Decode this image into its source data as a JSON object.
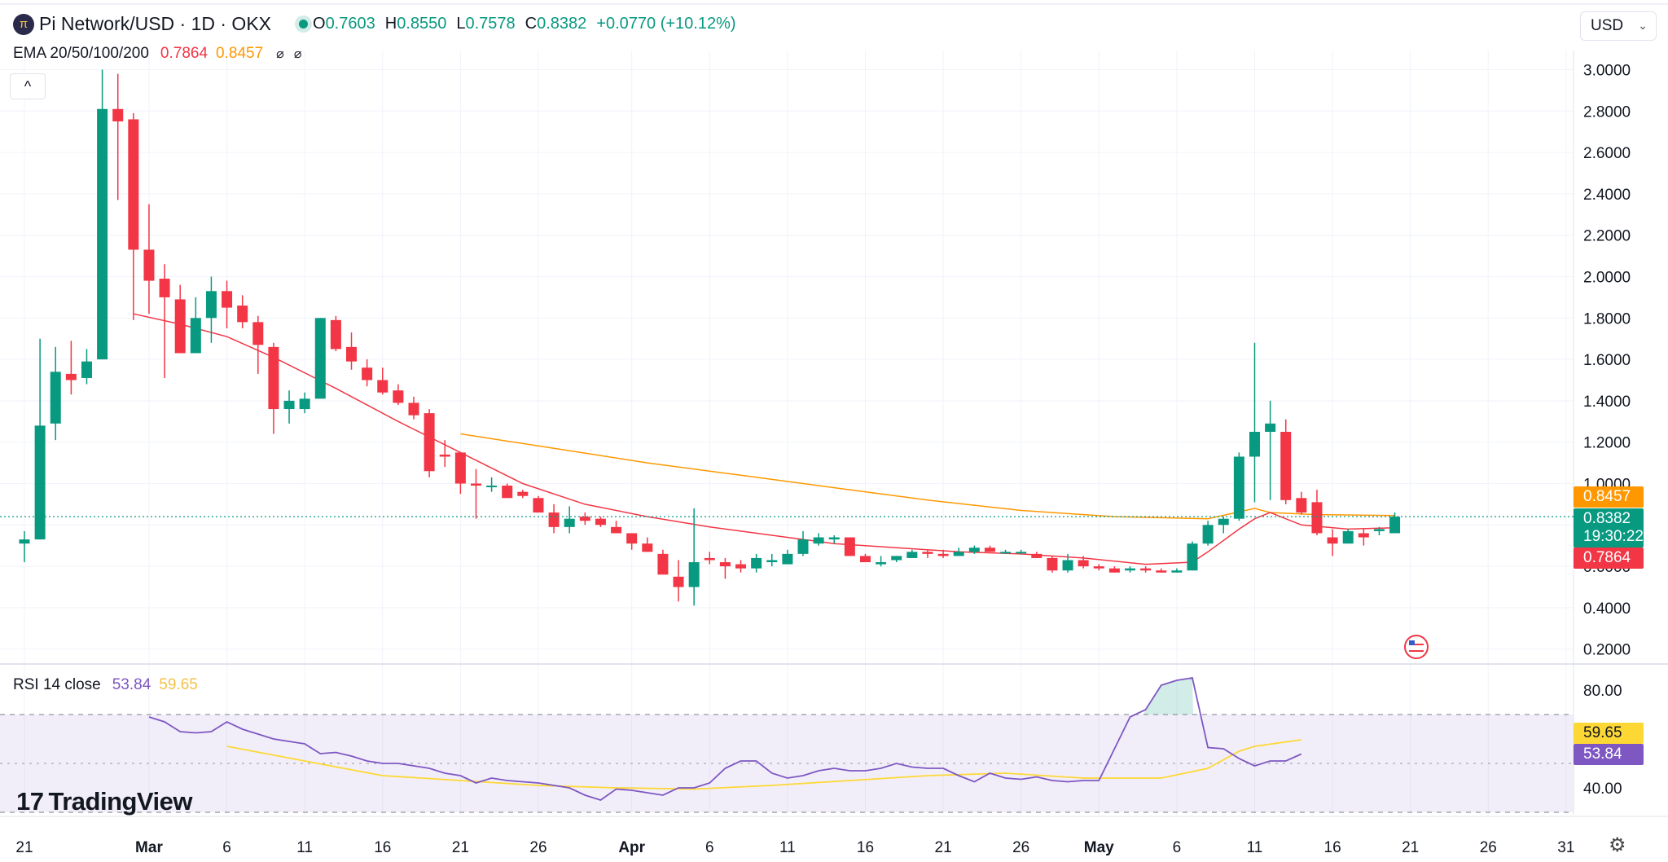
{
  "header": {
    "symbol_icon": "pi-coin-icon",
    "symbol": "Pi Network/USD · 1D · OKX",
    "o_label": "O",
    "o_value": "0.7603",
    "h_label": "H",
    "h_value": "0.8550",
    "l_label": "L",
    "l_value": "0.7578",
    "c_label": "C",
    "c_value": "0.8382",
    "change": "+0.0770 (+10.12%)"
  },
  "ema_legend": {
    "label": "EMA 20/50/100/200",
    "v1": "0.7864",
    "v2": "0.8457",
    "hidden_icon_1": "⌀",
    "hidden_icon_2": "⌀"
  },
  "collapse_icon": "^",
  "currency": {
    "value": "USD",
    "caret": "⌄"
  },
  "rsi_legend": {
    "label": "RSI 14 close",
    "rsi": "53.84",
    "ma": "59.65"
  },
  "price_tags": {
    "ema50": "0.8457",
    "last": "0.8382",
    "countdown": "19:30:22",
    "ema20": "0.7864"
  },
  "rsi_tags": {
    "ma": "59.65",
    "rsi": "53.84"
  },
  "logo": {
    "mark": "17",
    "text": "TradingView"
  },
  "settings_icon": "gear-icon",
  "colors": {
    "up": "#089981",
    "down": "#f23645",
    "ema20": "#f23645",
    "ema50": "#ff9800",
    "rsi": "#7e57c2",
    "rsi_ma": "#fdd835"
  },
  "chart_data": {
    "type": "candlestick",
    "title": "Pi Network/USD · 1D · OKX",
    "y_ticks": [
      "3.0000",
      "2.8000",
      "2.6000",
      "2.4000",
      "2.2000",
      "2.0000",
      "1.8000",
      "1.6000",
      "1.4000",
      "1.2000",
      "1.0000",
      "0.8000",
      "0.6000",
      "0.4000",
      "0.2000"
    ],
    "ylim": [
      0.13,
      3.03
    ],
    "x_ticks": [
      {
        "label": "21",
        "day": 0
      },
      {
        "label": "Mar",
        "day": 8
      },
      {
        "label": "6",
        "day": 13
      },
      {
        "label": "11",
        "day": 18
      },
      {
        "label": "16",
        "day": 23
      },
      {
        "label": "21",
        "day": 28
      },
      {
        "label": "26",
        "day": 33
      },
      {
        "label": "Apr",
        "day": 39
      },
      {
        "label": "6",
        "day": 44
      },
      {
        "label": "11",
        "day": 49
      },
      {
        "label": "16",
        "day": 54
      },
      {
        "label": "21",
        "day": 59
      },
      {
        "label": "26",
        "day": 64
      },
      {
        "label": "May",
        "day": 69
      },
      {
        "label": "6",
        "day": 74
      },
      {
        "label": "11",
        "day": 79
      },
      {
        "label": "16",
        "day": 84
      },
      {
        "label": "21",
        "day": 89
      },
      {
        "label": "26",
        "day": 94
      },
      {
        "label": "31",
        "day": 99
      }
    ],
    "candles_ohlc": [
      [
        0.71,
        0.77,
        0.62,
        0.73
      ],
      [
        0.73,
        1.7,
        0.73,
        1.28
      ],
      [
        1.29,
        1.66,
        1.21,
        1.54
      ],
      [
        1.53,
        1.69,
        1.43,
        1.5
      ],
      [
        1.51,
        1.65,
        1.48,
        1.59
      ],
      [
        1.6,
        3.0,
        1.6,
        2.81
      ],
      [
        2.81,
        2.98,
        2.37,
        2.75
      ],
      [
        2.76,
        2.79,
        1.79,
        2.13
      ],
      [
        2.13,
        2.35,
        1.82,
        1.98
      ],
      [
        1.99,
        2.06,
        1.51,
        1.9
      ],
      [
        1.89,
        1.96,
        1.63,
        1.63
      ],
      [
        1.63,
        1.9,
        1.63,
        1.8
      ],
      [
        1.8,
        2.0,
        1.68,
        1.93
      ],
      [
        1.93,
        1.98,
        1.75,
        1.85
      ],
      [
        1.86,
        1.91,
        1.75,
        1.78
      ],
      [
        1.78,
        1.81,
        1.53,
        1.67
      ],
      [
        1.66,
        1.68,
        1.24,
        1.36
      ],
      [
        1.36,
        1.45,
        1.29,
        1.4
      ],
      [
        1.36,
        1.44,
        1.34,
        1.41
      ],
      [
        1.41,
        1.8,
        1.41,
        1.8
      ],
      [
        1.79,
        1.81,
        1.64,
        1.65
      ],
      [
        1.66,
        1.73,
        1.55,
        1.59
      ],
      [
        1.56,
        1.6,
        1.47,
        1.5
      ],
      [
        1.5,
        1.56,
        1.43,
        1.44
      ],
      [
        1.45,
        1.48,
        1.38,
        1.39
      ],
      [
        1.39,
        1.42,
        1.31,
        1.33
      ],
      [
        1.34,
        1.36,
        1.03,
        1.06
      ],
      [
        1.14,
        1.21,
        1.08,
        1.13
      ],
      [
        1.15,
        1.15,
        0.95,
        1.0
      ],
      [
        1.0,
        1.07,
        0.83,
        0.99
      ],
      [
        0.99,
        1.03,
        0.96,
        0.99
      ],
      [
        0.99,
        1.0,
        0.93,
        0.93
      ],
      [
        0.96,
        0.97,
        0.93,
        0.94
      ],
      [
        0.93,
        0.94,
        0.86,
        0.86
      ],
      [
        0.86,
        0.9,
        0.76,
        0.79
      ],
      [
        0.79,
        0.89,
        0.76,
        0.83
      ],
      [
        0.84,
        0.86,
        0.8,
        0.82
      ],
      [
        0.83,
        0.84,
        0.79,
        0.8
      ],
      [
        0.79,
        0.82,
        0.76,
        0.76
      ],
      [
        0.76,
        0.76,
        0.68,
        0.71
      ],
      [
        0.71,
        0.74,
        0.67,
        0.67
      ],
      [
        0.66,
        0.68,
        0.58,
        0.56
      ],
      [
        0.55,
        0.63,
        0.43,
        0.5
      ],
      [
        0.5,
        0.88,
        0.41,
        0.62
      ],
      [
        0.64,
        0.67,
        0.61,
        0.63
      ],
      [
        0.62,
        0.64,
        0.54,
        0.6
      ],
      [
        0.61,
        0.63,
        0.57,
        0.59
      ],
      [
        0.59,
        0.66,
        0.57,
        0.64
      ],
      [
        0.62,
        0.66,
        0.6,
        0.63
      ],
      [
        0.61,
        0.68,
        0.61,
        0.66
      ],
      [
        0.66,
        0.77,
        0.65,
        0.73
      ],
      [
        0.71,
        0.76,
        0.7,
        0.74
      ],
      [
        0.73,
        0.75,
        0.71,
        0.74
      ],
      [
        0.74,
        0.74,
        0.65,
        0.65
      ],
      [
        0.65,
        0.66,
        0.62,
        0.62
      ],
      [
        0.61,
        0.65,
        0.6,
        0.62
      ],
      [
        0.63,
        0.65,
        0.62,
        0.65
      ],
      [
        0.64,
        0.68,
        0.64,
        0.67
      ],
      [
        0.67,
        0.68,
        0.64,
        0.66
      ],
      [
        0.66,
        0.68,
        0.64,
        0.65
      ],
      [
        0.65,
        0.69,
        0.65,
        0.67
      ],
      [
        0.67,
        0.7,
        0.66,
        0.69
      ],
      [
        0.69,
        0.7,
        0.67,
        0.67
      ],
      [
        0.67,
        0.68,
        0.66,
        0.67
      ],
      [
        0.67,
        0.68,
        0.66,
        0.67
      ],
      [
        0.66,
        0.67,
        0.64,
        0.64
      ],
      [
        0.64,
        0.65,
        0.57,
        0.58
      ],
      [
        0.58,
        0.66,
        0.57,
        0.63
      ],
      [
        0.63,
        0.65,
        0.59,
        0.6
      ],
      [
        0.6,
        0.61,
        0.58,
        0.59
      ],
      [
        0.59,
        0.6,
        0.57,
        0.57
      ],
      [
        0.58,
        0.6,
        0.57,
        0.59
      ],
      [
        0.59,
        0.6,
        0.57,
        0.58
      ],
      [
        0.58,
        0.59,
        0.57,
        0.57
      ],
      [
        0.57,
        0.59,
        0.57,
        0.58
      ],
      [
        0.58,
        0.72,
        0.58,
        0.71
      ],
      [
        0.71,
        0.82,
        0.7,
        0.8
      ],
      [
        0.8,
        0.84,
        0.76,
        0.83
      ],
      [
        0.83,
        1.15,
        0.82,
        1.13
      ],
      [
        1.13,
        1.68,
        0.91,
        1.25
      ],
      [
        1.25,
        1.4,
        0.92,
        1.29
      ],
      [
        1.25,
        1.31,
        0.9,
        0.92
      ],
      [
        0.93,
        0.96,
        0.85,
        0.86
      ],
      [
        0.91,
        0.97,
        0.75,
        0.76
      ],
      [
        0.74,
        0.78,
        0.65,
        0.71
      ],
      [
        0.71,
        0.78,
        0.71,
        0.77
      ],
      [
        0.76,
        0.78,
        0.7,
        0.74
      ],
      [
        0.77,
        0.79,
        0.75,
        0.78
      ],
      [
        0.76,
        0.86,
        0.76,
        0.84
      ]
    ],
    "ema20": [
      [
        7,
        1.82
      ],
      [
        10,
        1.77
      ],
      [
        13,
        1.71
      ],
      [
        16,
        1.61
      ],
      [
        20,
        1.46
      ],
      [
        24,
        1.3
      ],
      [
        28,
        1.15
      ],
      [
        32,
        1.0
      ],
      [
        36,
        0.9
      ],
      [
        40,
        0.84
      ],
      [
        44,
        0.79
      ],
      [
        48,
        0.75
      ],
      [
        52,
        0.71
      ],
      [
        56,
        0.69
      ],
      [
        60,
        0.67
      ],
      [
        64,
        0.66
      ],
      [
        68,
        0.64
      ],
      [
        72,
        0.61
      ],
      [
        75,
        0.62
      ],
      [
        76,
        0.67
      ],
      [
        78,
        0.78
      ],
      [
        79,
        0.83
      ],
      [
        80,
        0.86
      ],
      [
        82,
        0.8
      ],
      [
        85,
        0.78
      ],
      [
        88,
        0.7864
      ]
    ],
    "ema50": [
      [
        28,
        1.24
      ],
      [
        34,
        1.17
      ],
      [
        40,
        1.1
      ],
      [
        46,
        1.04
      ],
      [
        52,
        0.98
      ],
      [
        58,
        0.92
      ],
      [
        64,
        0.87
      ],
      [
        70,
        0.84
      ],
      [
        76,
        0.83
      ],
      [
        79,
        0.88
      ],
      [
        80,
        0.86
      ],
      [
        83,
        0.85
      ],
      [
        88,
        0.8457
      ]
    ],
    "rsi_ticks": [
      "80.00",
      "40.00"
    ],
    "rsi_ylim": [
      27,
      90
    ],
    "rsi_bands": [
      70,
      30
    ],
    "rsi": [
      [
        8,
        69
      ],
      [
        9,
        67
      ],
      [
        10,
        63
      ],
      [
        11,
        62.5
      ],
      [
        12,
        63
      ],
      [
        13,
        67
      ],
      [
        14,
        64
      ],
      [
        15,
        62
      ],
      [
        16,
        60
      ],
      [
        17,
        59
      ],
      [
        18,
        58
      ],
      [
        19,
        54
      ],
      [
        20,
        54.5
      ],
      [
        21,
        53
      ],
      [
        22,
        51
      ],
      [
        23,
        50
      ],
      [
        24,
        50
      ],
      [
        25,
        49
      ],
      [
        26,
        48
      ],
      [
        27,
        46
      ],
      [
        28,
        45
      ],
      [
        29,
        42
      ],
      [
        30,
        44
      ],
      [
        31,
        43
      ],
      [
        32,
        42.5
      ],
      [
        33,
        42
      ],
      [
        34,
        41
      ],
      [
        35,
        40
      ],
      [
        36,
        37
      ],
      [
        37,
        35
      ],
      [
        38,
        39.5
      ],
      [
        39,
        39
      ],
      [
        40,
        38
      ],
      [
        41,
        37
      ],
      [
        42,
        40
      ],
      [
        43,
        40
      ],
      [
        44,
        42
      ],
      [
        45,
        48
      ],
      [
        46,
        51
      ],
      [
        47,
        51
      ],
      [
        48,
        46
      ],
      [
        49,
        44
      ],
      [
        50,
        45
      ],
      [
        51,
        47
      ],
      [
        52,
        48
      ],
      [
        53,
        47
      ],
      [
        54,
        47
      ],
      [
        55,
        48
      ],
      [
        56,
        50
      ],
      [
        57,
        48.5
      ],
      [
        58,
        48
      ],
      [
        59,
        48
      ],
      [
        60,
        45
      ],
      [
        61,
        42.5
      ],
      [
        62,
        46
      ],
      [
        63,
        44
      ],
      [
        64,
        43.5
      ],
      [
        65,
        44.5
      ],
      [
        66,
        43
      ],
      [
        67,
        42.5
      ],
      [
        68,
        43
      ],
      [
        69,
        43
      ],
      [
        70,
        56
      ],
      [
        71,
        69
      ],
      [
        72,
        72
      ],
      [
        73,
        82
      ],
      [
        74,
        84
      ],
      [
        75,
        85
      ],
      [
        76,
        56.5
      ],
      [
        77,
        56
      ],
      [
        78,
        52
      ],
      [
        79,
        49
      ],
      [
        80,
        51
      ],
      [
        81,
        51
      ],
      [
        82,
        53.84
      ]
    ],
    "rsi_ma": [
      [
        13,
        57
      ],
      [
        18,
        51
      ],
      [
        23,
        45
      ],
      [
        28,
        43
      ],
      [
        33,
        41
      ],
      [
        38,
        40
      ],
      [
        43,
        39.5
      ],
      [
        48,
        41
      ],
      [
        53,
        43
      ],
      [
        58,
        45
      ],
      [
        63,
        46
      ],
      [
        68,
        44
      ],
      [
        73,
        44
      ],
      [
        76,
        48
      ],
      [
        78,
        55
      ],
      [
        79,
        57
      ],
      [
        82,
        59.65
      ]
    ]
  }
}
